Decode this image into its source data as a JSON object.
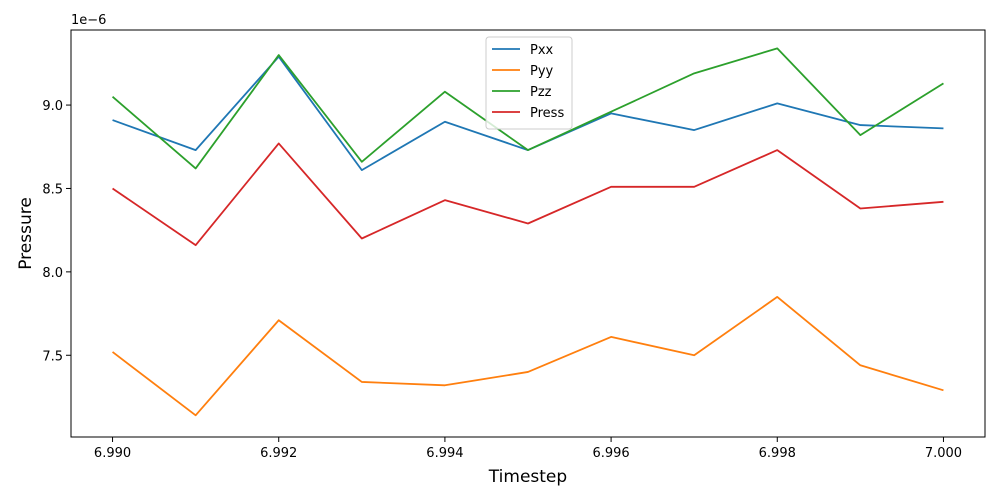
{
  "chart_data": {
    "type": "line",
    "title": "",
    "xlabel": "Timestep",
    "ylabel": "Pressure",
    "y_offset_label": "1e−6",
    "x": [
      6.99,
      6.991,
      6.992,
      6.993,
      6.994,
      6.995,
      6.996,
      6.997,
      6.998,
      6.999,
      7.0
    ],
    "xlim": [
      6.9895,
      7.0005
    ],
    "ylim": [
      7.01,
      9.45
    ],
    "y_scale": 1e-06,
    "xticks": [
      6.99,
      6.992,
      6.994,
      6.996,
      6.998,
      7.0
    ],
    "xtick_labels": [
      "6.990",
      "6.992",
      "6.994",
      "6.996",
      "6.998",
      "7.000"
    ],
    "yticks": [
      7.5,
      8.0,
      8.5,
      9.0
    ],
    "ytick_labels": [
      "7.5",
      "8.0",
      "8.5",
      "9.0"
    ],
    "grid": false,
    "legend_position": "top-center",
    "series": [
      {
        "name": "Pxx",
        "color": "#1f77b4",
        "values": [
          8.91,
          8.73,
          9.29,
          8.61,
          8.9,
          8.73,
          8.95,
          8.85,
          9.01,
          8.88,
          8.86
        ]
      },
      {
        "name": "Pyy",
        "color": "#ff7f0e",
        "values": [
          7.52,
          7.14,
          7.71,
          7.34,
          7.32,
          7.4,
          7.61,
          7.5,
          7.85,
          7.44,
          7.29
        ]
      },
      {
        "name": "Pzz",
        "color": "#2ca02c",
        "values": [
          9.05,
          8.62,
          9.3,
          8.66,
          9.08,
          8.73,
          8.96,
          9.19,
          9.34,
          8.82,
          9.13
        ]
      },
      {
        "name": "Press",
        "color": "#d62728",
        "values": [
          8.5,
          8.16,
          8.77,
          8.2,
          8.43,
          8.29,
          8.51,
          8.51,
          8.73,
          8.38,
          8.42
        ]
      }
    ]
  }
}
